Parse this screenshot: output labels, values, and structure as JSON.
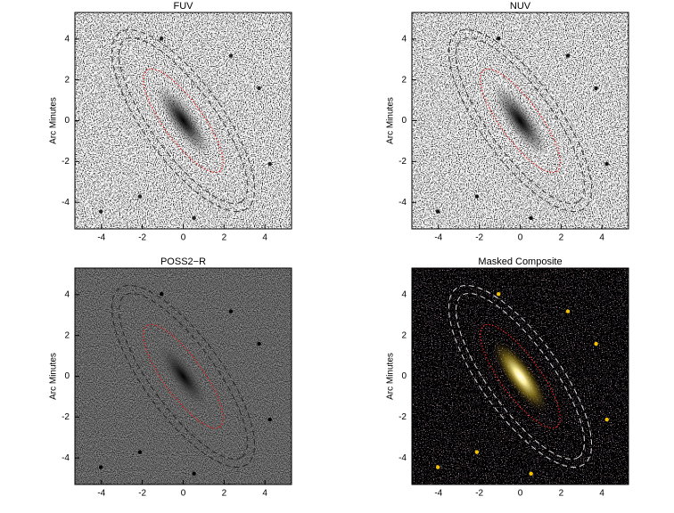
{
  "chart_data": [
    {
      "type": "image",
      "title": "FUV",
      "ylabel": "Arc Minutes",
      "xlim": [
        -5.3,
        5.3
      ],
      "ylim": [
        -5.3,
        5.3
      ],
      "xticks": [
        -4,
        -2,
        0,
        2,
        4
      ],
      "yticks": [
        -4,
        -2,
        0,
        2,
        4
      ]
    },
    {
      "type": "image",
      "title": "NUV",
      "ylabel": "Arc Minutes",
      "xlim": [
        -5.3,
        5.3
      ],
      "ylim": [
        -5.3,
        5.3
      ],
      "xticks": [
        -4,
        -2,
        0,
        2,
        4
      ],
      "yticks": [
        -4,
        -2,
        0,
        2,
        4
      ]
    },
    {
      "type": "image",
      "title": "POSS2−R",
      "ylabel": "Arc Minutes",
      "xlim": [
        -5.3,
        5.3
      ],
      "ylim": [
        -5.3,
        5.3
      ],
      "xticks": [
        -4,
        -2,
        0,
        2,
        4
      ],
      "yticks": [
        -4,
        -2,
        0,
        2,
        4
      ]
    },
    {
      "type": "image",
      "title": "Masked Composite",
      "ylabel": "Arc Minutes",
      "xlim": [
        -5.3,
        5.3
      ],
      "ylim": [
        -5.3,
        5.3
      ],
      "xticks": [
        -4,
        -2,
        0,
        2,
        4
      ],
      "yticks": [
        -4,
        -2,
        0,
        2,
        4
      ]
    }
  ]
}
